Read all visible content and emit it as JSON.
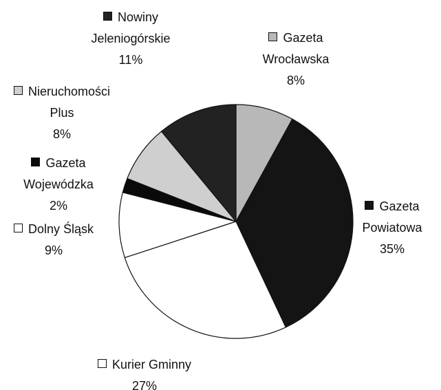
{
  "chart_data": {
    "type": "pie",
    "categories": [
      "Gazeta Wrocławska",
      "Gazeta Powiatowa",
      "Kurier Gminny",
      "Dolny Śląsk",
      "Gazeta Wojewódzka",
      "Nieruchomości Plus",
      "Nowiny Jeleniogórskie"
    ],
    "values": [
      8,
      35,
      27,
      9,
      2,
      8,
      11
    ],
    "value_labels": [
      "8%",
      "35%",
      "27%",
      "9%",
      "2%",
      "8%",
      "11%"
    ],
    "colors": [
      "#b8b8b8",
      "#141414",
      "#ffffff",
      "#ffffff",
      "#0a0a0a",
      "#cfcfcf",
      "#222222"
    ]
  }
}
